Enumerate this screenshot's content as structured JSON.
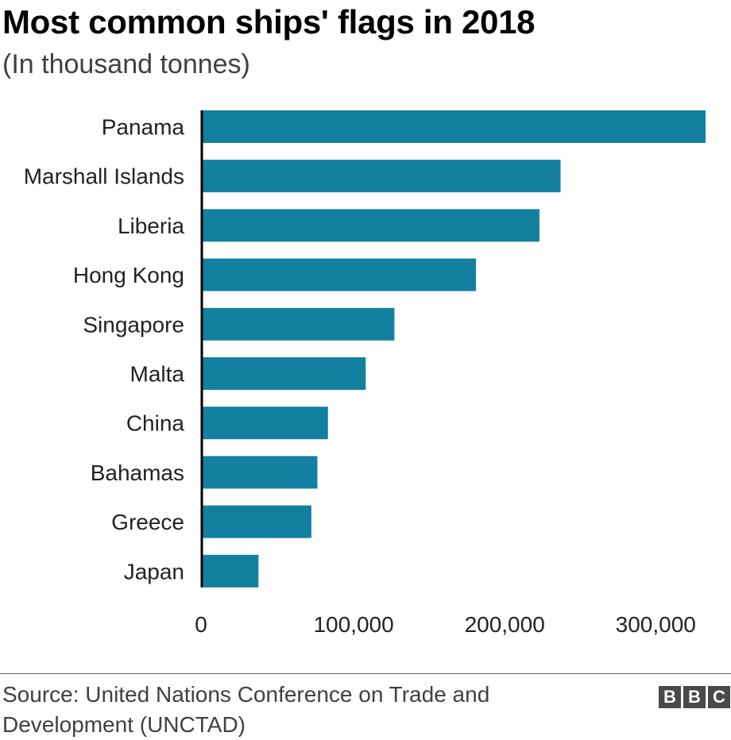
{
  "header": {
    "title": "Most common ships' flags in 2018",
    "subtitle": "(In thousand tonnes)"
  },
  "footer": {
    "source": "Source: United Nations Conference on Trade and Development (UNCTAD)",
    "logo_letters": [
      "B",
      "B",
      "C"
    ]
  },
  "colors": {
    "bar": "#1380A1",
    "axis": "#000000",
    "text": "#222222"
  },
  "chart_data": {
    "type": "bar",
    "orientation": "horizontal",
    "title": "Most common ships' flags in 2018",
    "subtitle": "(In thousand tonnes)",
    "categories": [
      "Panama",
      "Marshall Islands",
      "Liberia",
      "Hong Kong",
      "Singapore",
      "Malta",
      "China",
      "Bahamas",
      "Greece",
      "Japan"
    ],
    "values": [
      333000,
      237000,
      223000,
      181000,
      127000,
      108000,
      83000,
      76000,
      72000,
      37000
    ],
    "xlim": [
      0,
      333000
    ],
    "xticks": [
      0,
      100000,
      200000,
      300000
    ],
    "xtick_labels": [
      "0",
      "100,000",
      "200,000",
      "300,000"
    ],
    "xlabel": "",
    "ylabel": "",
    "grid": false,
    "legend": "none"
  }
}
